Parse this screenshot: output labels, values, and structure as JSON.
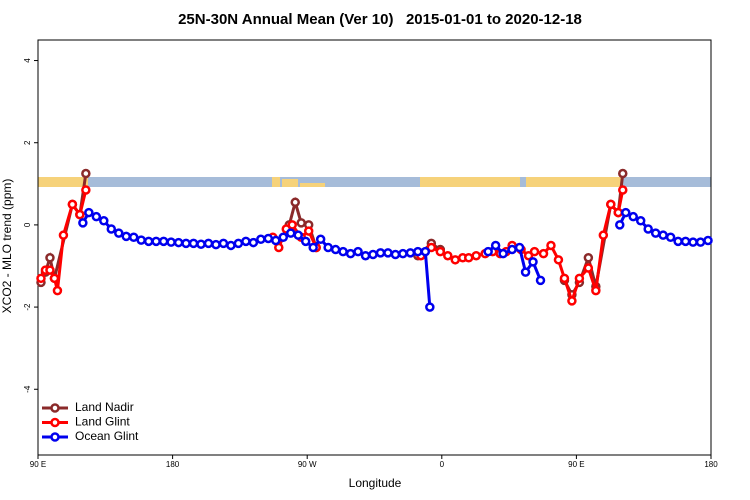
{
  "chart_data": {
    "type": "line",
    "title": "25N-30N Annual Mean (Ver 10)   2015-01-01 to 2020-12-18",
    "xlabel": "Longitude",
    "ylabel": "XCO2 - MLO trend (ppm)",
    "xlim": [
      90,
      540
    ],
    "ylim": [
      -5.6,
      4.5
    ],
    "xticks": [
      {
        "value": 90,
        "label": "90 E"
      },
      180,
      {
        "value": 270,
        "label": "90 W"
      },
      {
        "value": 360,
        "label": "0"
      },
      {
        "value": 450,
        "label": "90 E"
      },
      {
        "value": 540,
        "label": "180"
      }
    ],
    "yticks": [
      -4,
      -2,
      0,
      2,
      4
    ],
    "legend": "bottom-left",
    "series": [
      {
        "name": "Land Nadir",
        "color": "#8b2a2a",
        "x": [
          92,
          95,
          98,
          101,
          113,
          118,
          122,
          null,
          258,
          262,
          266,
          271,
          276,
          null,
          344,
          353,
          359,
          null,
          442,
          447,
          452,
          458,
          463,
          473,
          478,
          481
        ],
        "values": [
          -1.4,
          -1.15,
          -0.8,
          -1.3,
          0.5,
          0.25,
          1.25,
          null,
          0.0,
          0.55,
          0.05,
          0.0,
          -0.55,
          null,
          -0.75,
          -0.45,
          -0.6,
          null,
          -1.35,
          -1.7,
          -1.4,
          -0.8,
          -1.5,
          0.5,
          0.3,
          1.25
        ]
      },
      {
        "name": "Land Glint",
        "color": "#ff0000",
        "x": [
          92,
          95,
          98,
          101,
          103,
          107,
          113,
          118,
          122,
          null,
          247,
          251,
          256,
          260,
          266,
          271,
          276,
          null,
          346,
          353,
          359,
          364,
          369,
          374,
          378,
          383,
          389,
          394,
          399,
          403,
          407,
          413,
          418,
          422,
          428,
          433,
          438,
          442,
          447,
          452,
          458,
          463,
          468,
          473,
          478,
          481
        ],
        "values": [
          -1.3,
          -1.1,
          -1.1,
          -1.3,
          -1.6,
          -0.25,
          0.5,
          0.25,
          0.85,
          null,
          -0.3,
          -0.55,
          -0.1,
          0.0,
          -0.3,
          -0.15,
          -0.55,
          null,
          -0.75,
          -0.55,
          -0.65,
          -0.75,
          -0.85,
          -0.8,
          -0.8,
          -0.75,
          -0.7,
          -0.65,
          -0.7,
          -0.65,
          -0.5,
          -0.6,
          -0.75,
          -0.65,
          -0.7,
          -0.5,
          -0.85,
          -1.3,
          -1.85,
          -1.3,
          -1.05,
          -1.6,
          -0.25,
          0.5,
          0.3,
          0.85
        ]
      },
      {
        "name": "Ocean Glint",
        "color": "#0000ee",
        "x": [
          120,
          124,
          129,
          134,
          139,
          144,
          149,
          154,
          159,
          164,
          169,
          174,
          179,
          184,
          189,
          194,
          199,
          204,
          209,
          214,
          219,
          224,
          229,
          234,
          239,
          244,
          249,
          254,
          259,
          264,
          269,
          274,
          279,
          284,
          289,
          294,
          299,
          304,
          309,
          314,
          319,
          324,
          329,
          334,
          339,
          344,
          349,
          352,
          null,
          391,
          396,
          401,
          407,
          412,
          416,
          421,
          426,
          null,
          479,
          483,
          488,
          493,
          498,
          503,
          508,
          513,
          518,
          523,
          528,
          533,
          538
        ],
        "values": [
          0.05,
          0.3,
          0.2,
          0.1,
          -0.1,
          -0.2,
          -0.28,
          -0.3,
          -0.37,
          -0.4,
          -0.4,
          -0.4,
          -0.42,
          -0.43,
          -0.45,
          -0.45,
          -0.47,
          -0.45,
          -0.48,
          -0.45,
          -0.5,
          -0.45,
          -0.4,
          -0.43,
          -0.35,
          -0.33,
          -0.38,
          -0.3,
          -0.2,
          -0.25,
          -0.4,
          -0.55,
          -0.35,
          -0.55,
          -0.6,
          -0.65,
          -0.7,
          -0.65,
          -0.75,
          -0.72,
          -0.68,
          -0.68,
          -0.72,
          -0.7,
          -0.68,
          -0.65,
          -0.65,
          -2.0,
          null,
          -0.65,
          -0.5,
          -0.7,
          -0.6,
          -0.55,
          -1.15,
          -0.9,
          -1.35,
          null,
          0.0,
          0.3,
          0.2,
          0.1,
          -0.1,
          -0.2,
          -0.25,
          -0.3,
          -0.4,
          -0.4,
          -0.42,
          -0.42,
          -0.38
        ]
      }
    ]
  }
}
